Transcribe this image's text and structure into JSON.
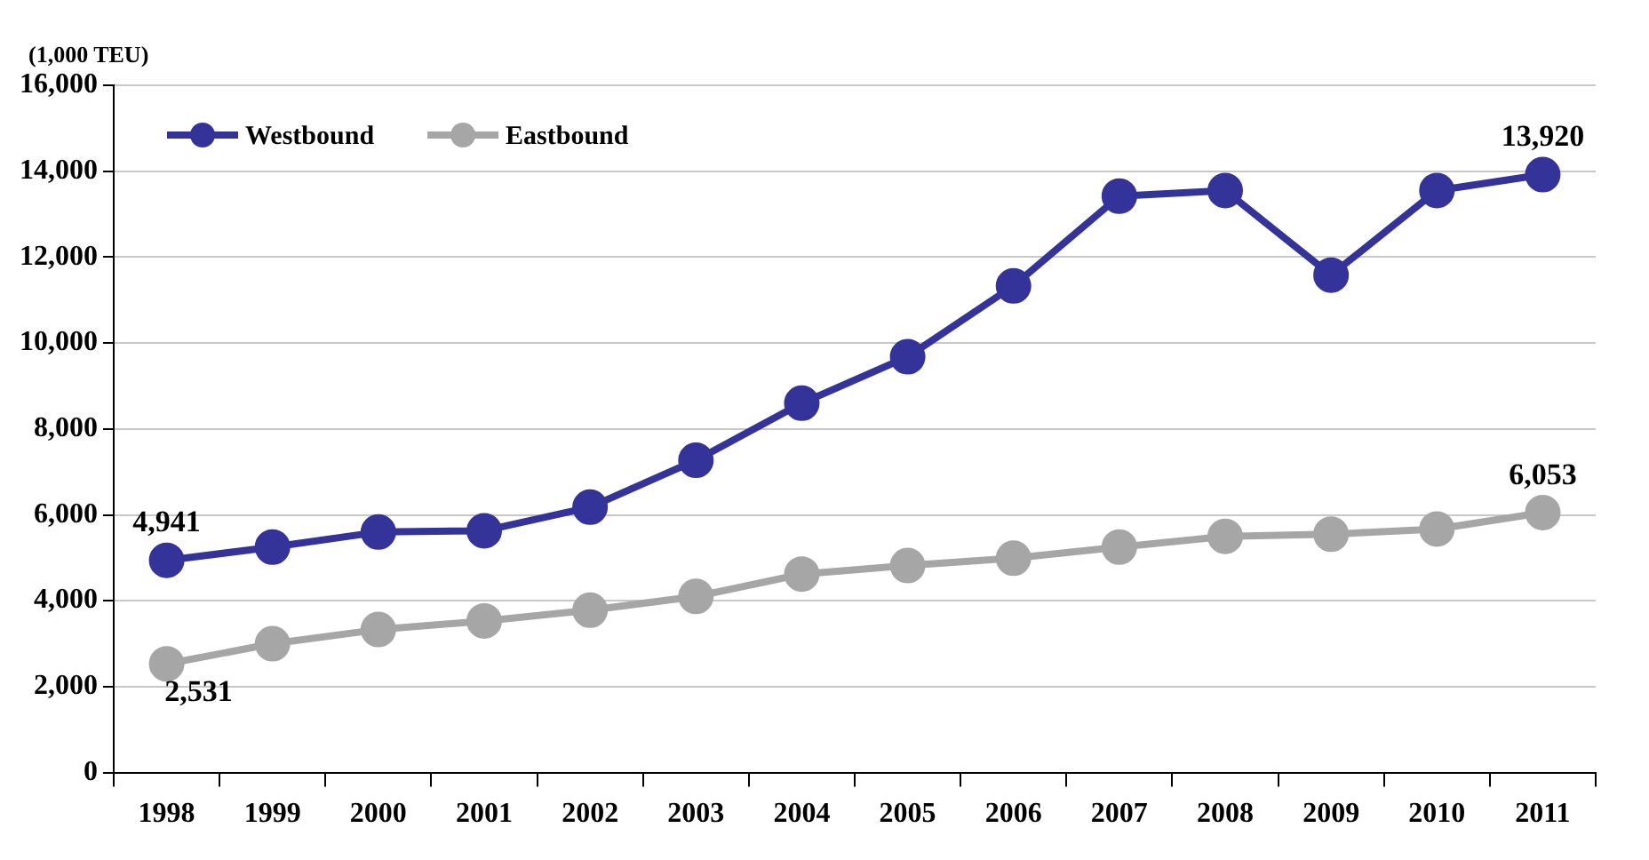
{
  "chart_data": {
    "type": "line",
    "ylabel": "(1,000 TEU)",
    "categories": [
      "1998",
      "1999",
      "2000",
      "2001",
      "2002",
      "2003",
      "2004",
      "2005",
      "2006",
      "2007",
      "2008",
      "2009",
      "2010",
      "2011"
    ],
    "series": [
      {
        "name": "Westbound",
        "color": "#333399",
        "values": [
          4941,
          5250,
          5600,
          5630,
          6180,
          7270,
          8600,
          9680,
          11330,
          13420,
          13550,
          11580,
          13550,
          13920
        ],
        "value_labels": [
          "4,941",
          null,
          null,
          null,
          null,
          null,
          null,
          null,
          null,
          null,
          null,
          null,
          null,
          "13,920"
        ]
      },
      {
        "name": "Eastbound",
        "color": "#a6a6a6",
        "values": [
          2531,
          3000,
          3330,
          3530,
          3780,
          4100,
          4620,
          4820,
          4990,
          5250,
          5500,
          5550,
          5670,
          6053
        ],
        "value_labels": [
          "2,531",
          null,
          null,
          null,
          null,
          null,
          null,
          null,
          null,
          null,
          null,
          null,
          null,
          "6,053"
        ]
      }
    ],
    "ylim": [
      0,
      16000
    ],
    "yticks": [
      0,
      {
        "value": 2000,
        "label": "2,000"
      },
      {
        "value": 4000,
        "label": "4,000"
      },
      {
        "value": 6000,
        "label": "6,000"
      },
      {
        "value": 8000,
        "label": "8,000"
      },
      {
        "value": 10000,
        "label": "10,000"
      },
      {
        "value": 12000,
        "label": "12,000"
      },
      {
        "value": 14000,
        "label": "14,000"
      },
      {
        "value": 16000,
        "label": "16,000"
      }
    ],
    "grid": "y",
    "legend": "top left",
    "marker": "circle",
    "line_style": "solid"
  }
}
